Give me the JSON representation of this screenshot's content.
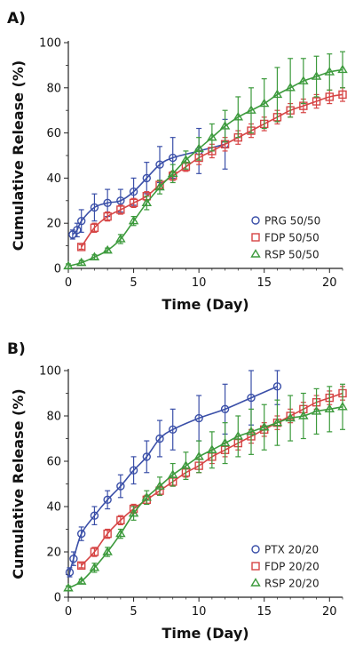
{
  "chart_data": [
    {
      "type": "line",
      "panel_label": "A)",
      "title": "",
      "xlabel": "Time (Day)",
      "ylabel": "Cumulative Release (%)",
      "xlim": [
        0,
        21
      ],
      "ylim": [
        0,
        100
      ],
      "xticks": [
        0,
        5,
        10,
        15,
        20
      ],
      "yticks": [
        0,
        20,
        40,
        60,
        80,
        100
      ],
      "grid": false,
      "legend_position": "bottom-right",
      "series": [
        {
          "name": "PRG 50/50",
          "color": "#3a4fa8",
          "marker": "circle",
          "x": [
            0.33,
            0.67,
            1,
            2,
            3,
            4,
            5,
            6,
            7,
            8,
            10,
            12
          ],
          "y": [
            15,
            17,
            21,
            27,
            29,
            30,
            34,
            40,
            46,
            49,
            52,
            55
          ],
          "error": [
            2,
            3,
            5,
            6,
            6,
            5,
            6,
            7,
            8,
            9,
            10,
            11
          ]
        },
        {
          "name": "FDP 50/50",
          "color": "#d64545",
          "marker": "square",
          "x": [
            1,
            2,
            3,
            4,
            5,
            6,
            7,
            8,
            9,
            10,
            11,
            12,
            13,
            14,
            15,
            16,
            17,
            18,
            19,
            20,
            21
          ],
          "y": [
            9.5,
            18,
            23,
            26,
            29,
            32,
            37,
            41,
            45,
            49,
            52,
            55,
            58,
            61,
            64,
            67,
            70,
            72,
            74,
            76,
            77
          ],
          "error": [
            1,
            2,
            2,
            2,
            2,
            2,
            2,
            2,
            2,
            3,
            3,
            3,
            3,
            3,
            3,
            3,
            3,
            3,
            3,
            3,
            3
          ]
        },
        {
          "name": "RSP 50/50",
          "color": "#3c9a3c",
          "marker": "triangle",
          "x": [
            0,
            1,
            2,
            3,
            4,
            5,
            6,
            7,
            8,
            9,
            10,
            11,
            12,
            13,
            14,
            15,
            16,
            17,
            18,
            19,
            20,
            21
          ],
          "y": [
            1,
            2.5,
            5,
            8,
            13,
            21,
            29,
            36,
            42,
            48,
            53,
            58,
            63,
            67,
            70,
            73,
            77,
            80,
            83,
            85,
            87,
            88
          ],
          "error": [
            1,
            1,
            1,
            1,
            2,
            2,
            3,
            3,
            4,
            4,
            5,
            6,
            7,
            9,
            10,
            11,
            12,
            13,
            10,
            9,
            8,
            8
          ]
        }
      ]
    },
    {
      "type": "line",
      "panel_label": "B)",
      "title": "",
      "xlabel": "Time (Day)",
      "ylabel": "Cumulative Release (%)",
      "xlim": [
        0,
        21
      ],
      "ylim": [
        0,
        100
      ],
      "xticks": [
        0,
        5,
        10,
        15,
        20
      ],
      "yticks": [
        0,
        20,
        40,
        60,
        80,
        100
      ],
      "grid": false,
      "legend_position": "bottom-right",
      "series": [
        {
          "name": "PTX 20/20",
          "color": "#3a4fa8",
          "marker": "circle",
          "x": [
            0.1,
            0.4,
            1,
            2,
            3,
            4,
            5,
            6,
            7,
            8,
            10,
            12,
            14,
            16
          ],
          "y": [
            11,
            17,
            28,
            36,
            43,
            49,
            56,
            62,
            70,
            74,
            79,
            83,
            88,
            93
          ],
          "error": [
            2,
            3,
            3,
            4,
            4,
            5,
            6,
            7,
            8,
            9,
            10,
            11,
            12,
            8
          ]
        },
        {
          "name": "FDP 20/20",
          "color": "#d64545",
          "marker": "square",
          "x": [
            1,
            2,
            3,
            4,
            5,
            6,
            7,
            8,
            9,
            10,
            11,
            12,
            13,
            14,
            15,
            16,
            17,
            18,
            19,
            20,
            21
          ],
          "y": [
            14,
            20,
            28,
            34,
            39,
            43,
            47,
            51,
            55,
            58,
            62,
            65,
            68,
            71,
            74,
            77,
            80,
            83,
            86,
            88,
            90
          ],
          "error": [
            1,
            2,
            2,
            2,
            2,
            2,
            2,
            2,
            2,
            3,
            3,
            3,
            3,
            3,
            3,
            3,
            3,
            3,
            3,
            3,
            3
          ]
        },
        {
          "name": "RSP 20/20",
          "color": "#3c9a3c",
          "marker": "triangle",
          "x": [
            0,
            1,
            2,
            3,
            4,
            5,
            6,
            7,
            8,
            9,
            10,
            11,
            12,
            13,
            14,
            15,
            16,
            17,
            18,
            19,
            20,
            21
          ],
          "y": [
            4,
            7,
            13,
            20,
            28,
            37,
            44,
            49,
            54,
            58,
            62,
            65,
            68,
            71,
            73,
            75,
            77,
            79,
            80,
            82,
            83,
            84
          ],
          "error": [
            1,
            1,
            2,
            2,
            2,
            3,
            3,
            4,
            5,
            6,
            7,
            8,
            9,
            9,
            10,
            10,
            10,
            10,
            10,
            10,
            10,
            10
          ]
        }
      ]
    }
  ]
}
